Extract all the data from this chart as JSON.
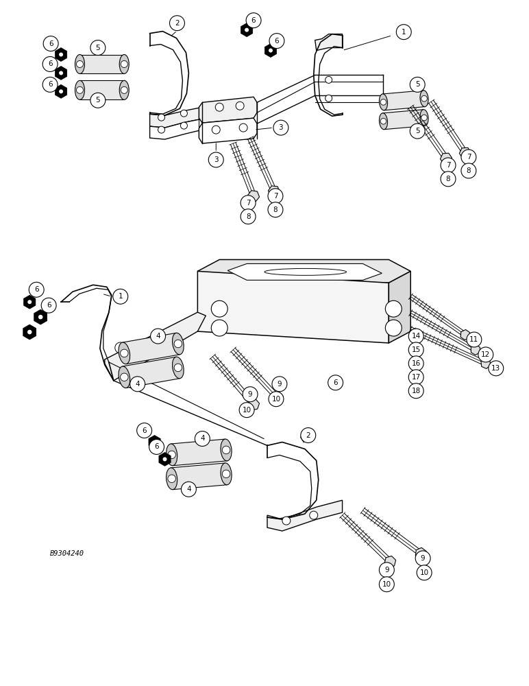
{
  "bg_color": "#ffffff",
  "line_color": "#000000",
  "fig_width": 7.72,
  "fig_height": 10.0,
  "watermark": "B9304240",
  "dpi": 100
}
